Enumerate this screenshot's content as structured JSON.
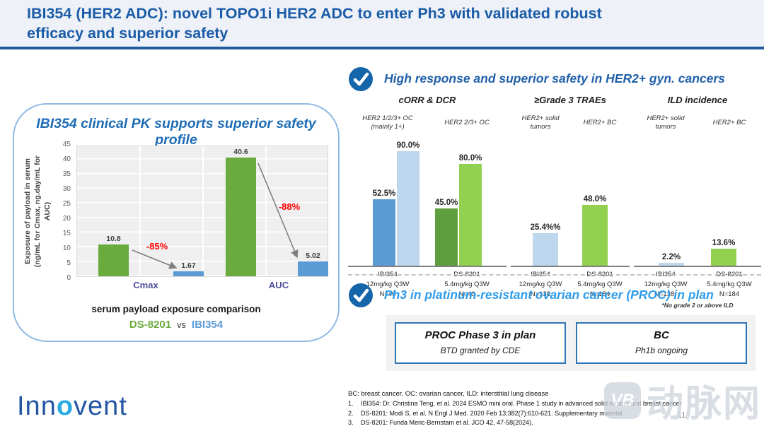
{
  "header": {
    "title_lines": [
      "IBI354 (HER2 ADC): novel TOPO1i HER2 ADC to enter Ph3 with validated robust",
      "efficacy and superior safety"
    ],
    "accent_color": "#1e5a9c"
  },
  "chart_data": [
    {
      "id": "pk-exposure",
      "type": "bar",
      "panel_title": "IBI354 clinical PK supports superior safety profile",
      "ylabel": "Exposure of payload in serum\n(ng/mL for Cmax, ng.day/mL for AUC)",
      "ylim": [
        0,
        45
      ],
      "yticks": [
        45,
        40,
        35,
        30,
        25,
        20,
        15,
        10,
        5,
        0
      ],
      "grid": true,
      "categories": [
        "Cmax",
        "AUC"
      ],
      "series": [
        {
          "name": "DS-8201",
          "color": "#6aab3e",
          "values": [
            10.8,
            40.6
          ],
          "labels": [
            "10.8",
            "40.6"
          ]
        },
        {
          "name": "IBI354",
          "color": "#5b9bd5",
          "values": [
            1.67,
            5.02
          ],
          "labels": [
            "1.67",
            "5.02"
          ]
        }
      ],
      "annotations": [
        {
          "text": "-85%",
          "color": "#ff0000"
        },
        {
          "text": "-88%",
          "color": "#ff0000"
        }
      ],
      "caption": "serum payload exposure comparison",
      "legend": [
        {
          "text": "DS-8201",
          "color": "#6aab3e"
        },
        {
          "text": "vs",
          "color": "#333333"
        },
        {
          "text": "IBI354",
          "color": "#5b9bd5"
        }
      ]
    },
    {
      "id": "corr-dcr",
      "type": "bar",
      "title": "cORR & DCR",
      "unit": "%",
      "groups": [
        {
          "cohort": "HER2 1/2/3+ OC\n(mainly 1+)",
          "arm_lines": [
            "IBI354",
            "12mg/kg Q3W",
            "N=40"
          ],
          "bars": [
            {
              "metric": "cORR",
              "value": 52.5,
              "label": "52.5%",
              "color": "#5b9bd5"
            },
            {
              "metric": "DCR",
              "value": 90.0,
              "label": "90.0%",
              "color": "#bdd7ee"
            }
          ]
        },
        {
          "cohort": "HER2 2/3+ OC",
          "arm_lines": [
            "DS-8201",
            "5.4mg/kg Q3W",
            "N=40"
          ],
          "bars": [
            {
              "metric": "cORR",
              "value": 45.0,
              "label": "45.0%",
              "color": "#5f9e3f"
            },
            {
              "metric": "DCR",
              "value": 80.0,
              "label": "80.0%",
              "color": "#92d050"
            }
          ]
        }
      ]
    },
    {
      "id": "grade3-traes",
      "type": "bar",
      "title": "≥Grade 3 TRAEs",
      "unit": "%",
      "groups": [
        {
          "cohort": "HER2+ solid\ntumors",
          "arm_lines": [
            "IBI354",
            "12mg/kg Q3W",
            "N=138"
          ],
          "bars": [
            {
              "value": 25.4,
              "label": "25.4%%",
              "color": "#bdd7ee"
            }
          ]
        },
        {
          "cohort": "HER2+ BC",
          "arm_lines": [
            "DS-8201",
            "5.4mg/kg Q3W",
            "N=184"
          ],
          "bars": [
            {
              "value": 48.0,
              "label": "48.0%",
              "color": "#92d050"
            }
          ]
        }
      ]
    },
    {
      "id": "ild-incidence",
      "type": "bar",
      "title": "ILD incidence",
      "unit": "%",
      "groups": [
        {
          "cohort": "HER2+ solid\ntumors",
          "arm_lines": [
            "IBI354",
            "12mg/kg Q3W",
            "N=138*"
          ],
          "bars": [
            {
              "value": 2.2,
              "label": "2.2%",
              "color": "#bdd7ee"
            }
          ]
        },
        {
          "cohort": "HER2+ BC",
          "arm_lines": [
            "DS-8201",
            "5.4mg/kg Q3W",
            "N=184"
          ],
          "bars": [
            {
              "value": 13.6,
              "label": "13.6%",
              "color": "#92d050"
            }
          ]
        }
      ],
      "footnote": "*No grade 2 or above ILD"
    }
  ],
  "sections": {
    "safety": {
      "title": "High response and superior safety in HER2+ gyn. cancers"
    },
    "proc": {
      "title": "Ph3 in platinum-resistant ovarian cancer (PROC) in plan",
      "boxes": [
        {
          "title": "PROC Phase 3 in plan",
          "subtitle": "BTD granted by CDE"
        },
        {
          "title": "BC",
          "subtitle": "Ph1b ongoing"
        }
      ]
    }
  },
  "footer": {
    "logo_text_start": "Inn",
    "logo_text_o": "o",
    "logo_text_end": "vent",
    "abbreviations": "BC: breast cancer, OC: ovarian cancer, ILD: interstitial lung disease",
    "references": [
      {
        "num": "1.",
        "text": "IBI354:  Dr. Christina Teng, et al. 2024 ESMO mini oral. Phase 1 study in advanced solid tumors and breast cancer"
      },
      {
        "num": "2.",
        "text": "DS-8201:  Modi S, et al. N Engl J Med. 2020 Feb 13;382(7):610-621. Supplementary material."
      },
      {
        "num": "3.",
        "text": "DS-8201:  Funda Meric-Bernstam et al. JCO 42, 47-58(2024)."
      }
    ],
    "page_number": "11",
    "watermark_mark": "VB",
    "watermark_text": "动脉网"
  }
}
